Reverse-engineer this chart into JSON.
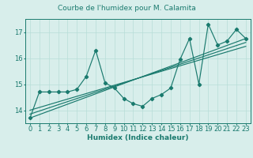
{
  "title": "Courbe de l'humidex pour M. Calamita",
  "xlabel": "Humidex (Indice chaleur)",
  "x_values": [
    0,
    1,
    2,
    3,
    4,
    5,
    6,
    7,
    8,
    9,
    10,
    11,
    12,
    13,
    14,
    15,
    16,
    17,
    18,
    19,
    20,
    21,
    22,
    23
  ],
  "y_main": [
    13.7,
    14.7,
    14.7,
    14.7,
    14.7,
    14.8,
    15.3,
    16.3,
    15.05,
    14.85,
    14.45,
    14.25,
    14.15,
    14.45,
    14.6,
    14.85,
    15.95,
    16.75,
    15.0,
    17.3,
    16.5,
    16.65,
    17.1,
    16.75
  ],
  "trend_lines": [
    [
      [
        0,
        23
      ],
      [
        13.7,
        16.75
      ]
    ],
    [
      [
        0,
        23
      ],
      [
        13.85,
        16.6
      ]
    ],
    [
      [
        0,
        23
      ],
      [
        14.0,
        16.45
      ]
    ]
  ],
  "line_color": "#1a7a6e",
  "bg_color": "#d8eeeb",
  "grid_color": "#b8ddd8",
  "ylim": [
    13.5,
    17.5
  ],
  "xlim": [
    -0.5,
    23.5
  ],
  "yticks": [
    14,
    15,
    16,
    17
  ],
  "title_fontsize": 6.5,
  "label_fontsize": 6.5,
  "tick_fontsize": 6
}
